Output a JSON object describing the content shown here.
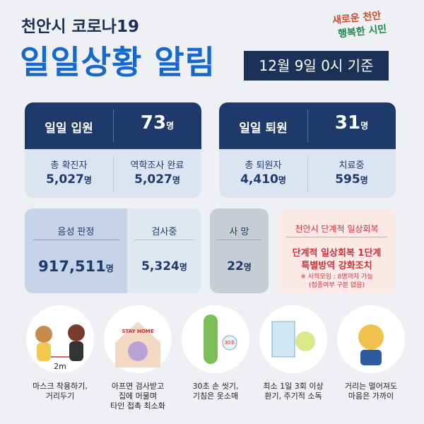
{
  "header": {
    "subtitle": "천안시 코로나19",
    "title": "일일상황 알림",
    "date": "12월 9일 0시 기준",
    "logo": [
      "새로운 천안",
      "행복한 시민"
    ]
  },
  "unit": "명",
  "admission": {
    "label": "일일 입원",
    "value": "73",
    "left": {
      "label": "총 확진자",
      "value": "5,027"
    },
    "right": {
      "label": "역학조사 완료",
      "value": "5,027"
    }
  },
  "discharge": {
    "label": "일일 퇴원",
    "value": "31",
    "left": {
      "label": "총 퇴원자",
      "value": "4,410"
    },
    "right": {
      "label": "치료중",
      "value": "595"
    }
  },
  "tests": {
    "negative": {
      "label": "음성 판정",
      "value": "917,511"
    },
    "pending": {
      "label": "검사중",
      "value": "5,324"
    }
  },
  "deaths": {
    "label": "사 망",
    "value": "22"
  },
  "notice": {
    "title": "천안시 단계적 일상회복",
    "lines": [
      "단계적 일상회복 1단계",
      "특별방역 강화조치"
    ],
    "note": [
      "※ 사적모임 : 8명까지 가능",
      "(접종여부 구분 없음)"
    ]
  },
  "tips": [
    {
      "art": "2m",
      "caption": [
        "마스크 착용하기,",
        "거리두기"
      ]
    },
    {
      "art": "STAY HOME",
      "caption": [
        "아프면 검사받고",
        "집에 머물며",
        "타인 접촉 최소화"
      ]
    },
    {
      "art": "30초",
      "caption": [
        "30초 손 씻기,",
        "기침은 옷소매"
      ]
    },
    {
      "caption": [
        "최소 1일 3회 이상",
        "환기, 주기적 소독"
      ]
    },
    {
      "caption": [
        "거리는 멀어져도",
        "마음은 가까이"
      ]
    }
  ]
}
